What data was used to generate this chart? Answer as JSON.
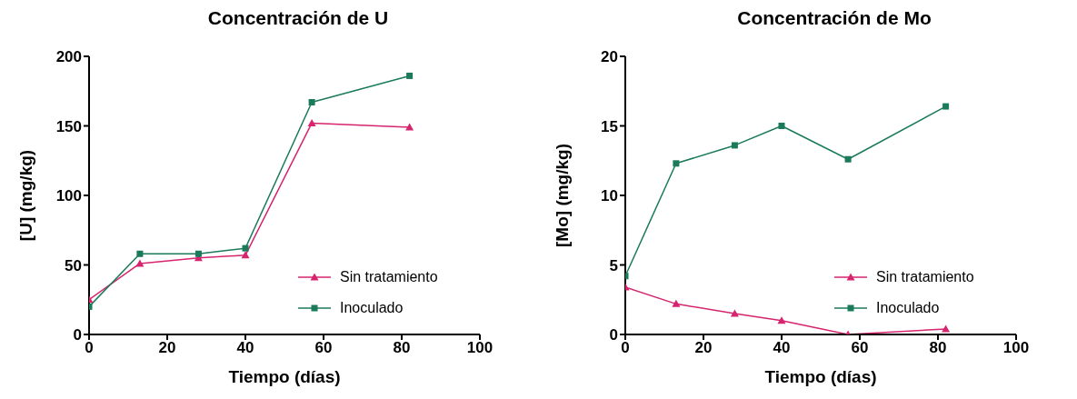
{
  "chart_data": [
    {
      "type": "line",
      "title": "Concentración de U",
      "xlabel": "Tiempo (días)",
      "ylabel": "[U] (mg/kg)",
      "xlim": [
        0,
        100
      ],
      "xticks": [
        0,
        20,
        40,
        60,
        80,
        100
      ],
      "ylim": [
        0,
        200
      ],
      "yticks": [
        0,
        50,
        100,
        150,
        200
      ],
      "legend": "bottom right",
      "grid": false,
      "series": [
        {
          "name": "Sin tratamiento",
          "color": "#d6246e",
          "marker": "triangle",
          "x": [
            0,
            13,
            28,
            40,
            57,
            82
          ],
          "values": [
            25,
            51,
            55,
            57,
            152,
            149
          ]
        },
        {
          "name": "Inoculado",
          "color": "#1a7a5a",
          "marker": "square",
          "x": [
            0,
            13,
            28,
            40,
            57,
            82
          ],
          "values": [
            20,
            58,
            58,
            62,
            167,
            186
          ]
        }
      ]
    },
    {
      "type": "line",
      "title": "Concentración de Mo",
      "xlabel": "Tiempo (días)",
      "ylabel": "[Mo] (mg/kg)",
      "xlim": [
        0,
        100
      ],
      "xticks": [
        0,
        20,
        40,
        60,
        80,
        100
      ],
      "ylim": [
        0,
        20
      ],
      "yticks": [
        0,
        5,
        10,
        15,
        20
      ],
      "legend": "bottom right",
      "grid": false,
      "series": [
        {
          "name": "Sin tratamiento",
          "color": "#d6246e",
          "marker": "triangle",
          "x": [
            0,
            13,
            28,
            40,
            57,
            82
          ],
          "values": [
            3.4,
            2.2,
            1.5,
            1.0,
            0,
            0.4
          ]
        },
        {
          "name": "Inoculado",
          "color": "#1a7a5a",
          "marker": "square",
          "x": [
            0,
            13,
            28,
            40,
            57,
            82
          ],
          "values": [
            4.2,
            12.3,
            13.6,
            15.0,
            12.6,
            16.4
          ]
        }
      ]
    }
  ]
}
